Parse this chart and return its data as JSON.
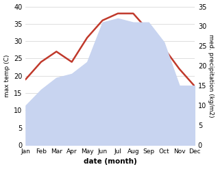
{
  "months": [
    "Jan",
    "Feb",
    "Mar",
    "Apr",
    "May",
    "Jun",
    "Jul",
    "Aug",
    "Sep",
    "Oct",
    "Nov",
    "Dec"
  ],
  "max_temp": [
    19,
    24,
    27,
    24,
    31,
    36,
    38,
    38,
    33,
    28,
    22,
    17
  ],
  "precipitation": [
    10,
    14,
    17,
    18,
    21,
    31,
    32,
    31,
    31,
    26,
    15,
    15
  ],
  "temp_color": "#c0392b",
  "precip_color_fill": "#c8d4f0",
  "temp_ylim": [
    0,
    40
  ],
  "precip_ylim": [
    0,
    35
  ],
  "xlabel": "date (month)",
  "ylabel_left": "max temp (C)",
  "ylabel_right": "med. precipitation (kg/m2)",
  "bg_color": "#ffffff",
  "grid_color": "#d0d0d0"
}
